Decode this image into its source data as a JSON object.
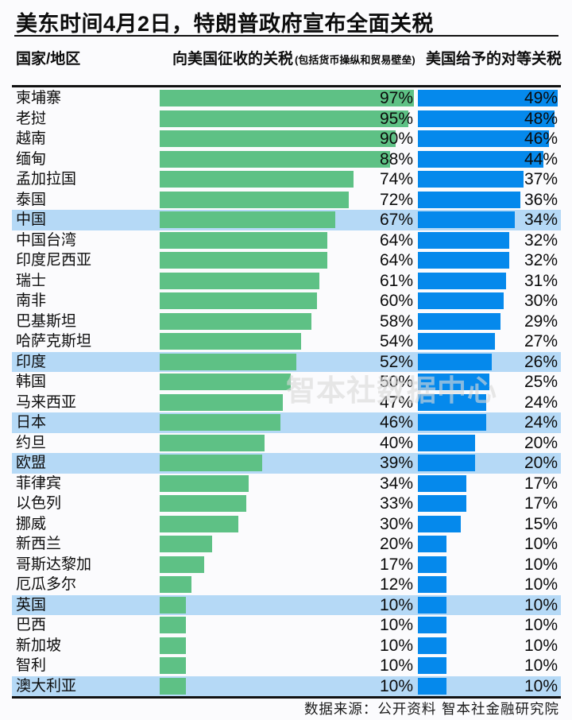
{
  "title": "美东时间4月2日，特朗普政府宣布全面关税",
  "columns": {
    "country": "国家/地区",
    "charged": "向美国征收的关税",
    "charged_note": "(包括货币操纵和贸易壁垒)",
    "reciprocal": "美国给予的对等关税"
  },
  "watermark": "智本社数据中心",
  "footer": "数据来源：公开资料  智本社金融研究院",
  "colors": {
    "green": "#5ec185",
    "blue": "#0589ec",
    "highlight": "#b5d9f6",
    "text": "#0d0d0d"
  },
  "chart_data": {
    "type": "bar",
    "orientation": "horizontal",
    "title": "美东时间4月2日，特朗普政府宣布全面关税",
    "legend_position": "none",
    "grid": false,
    "series_meta": [
      {
        "name": "向美国征收的关税 (包括货币操纵和贸易壁垒)",
        "color": "#5ec185",
        "axis_max": 97,
        "unit": "%"
      },
      {
        "name": "美国给予的对等关税",
        "color": "#0589ec",
        "axis_max": 49,
        "unit": "%"
      }
    ],
    "rows": [
      {
        "country": "柬埔寨",
        "charged": 97,
        "reciprocal": 49,
        "highlight": false
      },
      {
        "country": "老挝",
        "charged": 95,
        "reciprocal": 48,
        "highlight": false
      },
      {
        "country": "越南",
        "charged": 90,
        "reciprocal": 46,
        "highlight": false
      },
      {
        "country": "缅甸",
        "charged": 88,
        "reciprocal": 44,
        "highlight": false
      },
      {
        "country": "孟加拉国",
        "charged": 74,
        "reciprocal": 37,
        "highlight": false
      },
      {
        "country": "泰国",
        "charged": 72,
        "reciprocal": 36,
        "highlight": false
      },
      {
        "country": "中国",
        "charged": 67,
        "reciprocal": 34,
        "highlight": true
      },
      {
        "country": "中国台湾",
        "charged": 64,
        "reciprocal": 32,
        "highlight": false
      },
      {
        "country": "印度尼西亚",
        "charged": 64,
        "reciprocal": 32,
        "highlight": false
      },
      {
        "country": "瑞士",
        "charged": 61,
        "reciprocal": 31,
        "highlight": false
      },
      {
        "country": "南非",
        "charged": 60,
        "reciprocal": 30,
        "highlight": false
      },
      {
        "country": "巴基斯坦",
        "charged": 58,
        "reciprocal": 29,
        "highlight": false
      },
      {
        "country": "哈萨克斯坦",
        "charged": 54,
        "reciprocal": 27,
        "highlight": false
      },
      {
        "country": "印度",
        "charged": 52,
        "reciprocal": 26,
        "highlight": true
      },
      {
        "country": "韩国",
        "charged": 50,
        "reciprocal": 25,
        "highlight": false
      },
      {
        "country": "马来西亚",
        "charged": 47,
        "reciprocal": 24,
        "highlight": false
      },
      {
        "country": "日本",
        "charged": 46,
        "reciprocal": 24,
        "highlight": true
      },
      {
        "country": "约旦",
        "charged": 40,
        "reciprocal": 20,
        "highlight": false
      },
      {
        "country": "欧盟",
        "charged": 39,
        "reciprocal": 20,
        "highlight": true
      },
      {
        "country": "菲律宾",
        "charged": 34,
        "reciprocal": 17,
        "highlight": false
      },
      {
        "country": "以色列",
        "charged": 33,
        "reciprocal": 17,
        "highlight": false
      },
      {
        "country": "挪威",
        "charged": 30,
        "reciprocal": 15,
        "highlight": false
      },
      {
        "country": "新西兰",
        "charged": 20,
        "reciprocal": 10,
        "highlight": false
      },
      {
        "country": "哥斯达黎加",
        "charged": 17,
        "reciprocal": 10,
        "highlight": false
      },
      {
        "country": "厄瓜多尔",
        "charged": 12,
        "reciprocal": 10,
        "highlight": false
      },
      {
        "country": "英国",
        "charged": 10,
        "reciprocal": 10,
        "highlight": true
      },
      {
        "country": "巴西",
        "charged": 10,
        "reciprocal": 10,
        "highlight": false
      },
      {
        "country": "新加坡",
        "charged": 10,
        "reciprocal": 10,
        "highlight": false
      },
      {
        "country": "智利",
        "charged": 10,
        "reciprocal": 10,
        "highlight": false
      },
      {
        "country": "澳大利亚",
        "charged": 10,
        "reciprocal": 10,
        "highlight": true
      }
    ]
  }
}
